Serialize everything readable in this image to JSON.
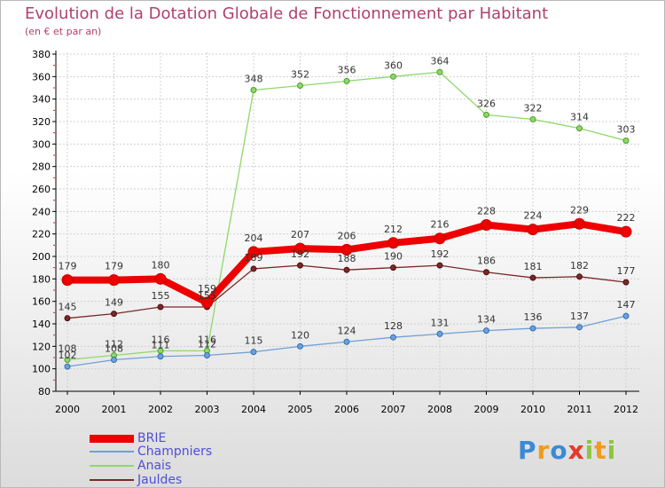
{
  "header": {
    "title": "Evolution de la Dotation Globale de Fonctionnement par Habitant",
    "subtitle": "(en € et par an)"
  },
  "chart_data": {
    "type": "line",
    "title": "Evolution de la Dotation Globale de Fonctionnement par Habitant",
    "subtitle": "(en € et par an)",
    "xlabel": "",
    "ylabel": "",
    "ylim": [
      80,
      380
    ],
    "yticks": [
      80,
      100,
      120,
      140,
      160,
      180,
      200,
      220,
      240,
      260,
      280,
      300,
      320,
      340,
      360,
      380
    ],
    "categories": [
      "2000",
      "2001",
      "2002",
      "2003",
      "2004",
      "2005",
      "2006",
      "2007",
      "2008",
      "2009",
      "2010",
      "2011",
      "2012"
    ],
    "grid": true,
    "legend_position": "bottom-left",
    "series": [
      {
        "name": "BRIE",
        "color": "#ee0000",
        "values": [
          179,
          179,
          180,
          159,
          204,
          207,
          206,
          212,
          216,
          228,
          224,
          229,
          222
        ]
      },
      {
        "name": "Champniers",
        "color": "#6fa0d8",
        "values": [
          102,
          108,
          111,
          112,
          115,
          120,
          124,
          128,
          131,
          134,
          136,
          137,
          147
        ]
      },
      {
        "name": "Anais",
        "color": "#8ed86a",
        "values": [
          108,
          112,
          116,
          116,
          348,
          352,
          356,
          360,
          364,
          326,
          322,
          314,
          303
        ]
      },
      {
        "name": "Jauldes",
        "color": "#7a2828",
        "values": [
          145,
          149,
          155,
          155,
          189,
          192,
          188,
          190,
          192,
          186,
          181,
          182,
          177
        ]
      }
    ]
  },
  "logo": {
    "letters": [
      "P",
      "r",
      "o",
      "x",
      "i",
      "t",
      "i"
    ],
    "colors": [
      "#3a8ad6",
      "#f29a1a",
      "#3a8ad6",
      "#e23a2a",
      "#8cc63f",
      "#f29a1a",
      "#8cc63f"
    ]
  }
}
